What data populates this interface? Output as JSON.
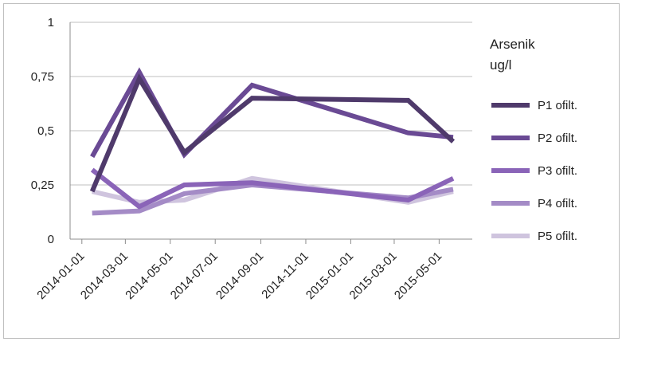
{
  "chart_data": {
    "type": "line",
    "title": "",
    "xlabel": "",
    "ylabel": "",
    "legend_title": [
      "Arsenik",
      "ug/l"
    ],
    "x_tick_labels": [
      "2014-01-01",
      "2014-03-01",
      "2014-05-01",
      "2014-07-01",
      "2014-09-01",
      "2014-11-01",
      "2015-01-01",
      "2015-03-01",
      "2015-05-01"
    ],
    "y_tick_labels": [
      "0",
      "0,25",
      "0,5",
      "0,75",
      "1"
    ],
    "y_ticks": [
      0,
      0.25,
      0.5,
      0.75,
      1
    ],
    "ylim": [
      0,
      1
    ],
    "xlim": [
      "2013-12-16",
      "2015-06-15"
    ],
    "legend_position": "right",
    "grid": "horizontal",
    "series": [
      {
        "name": "P1 ofilt.",
        "color": "#4f3a6b",
        "x": [
          "2014-01-15",
          "2014-03-20",
          "2014-05-20",
          "2014-08-20",
          "2015-03-20",
          "2015-05-20"
        ],
        "values": [
          0.22,
          0.74,
          0.4,
          0.65,
          0.64,
          0.45
        ]
      },
      {
        "name": "P2 ofilt.",
        "color": "#6a4a94",
        "x": [
          "2014-01-15",
          "2014-03-20",
          "2014-05-20",
          "2014-08-20",
          "2015-03-20",
          "2015-05-20"
        ],
        "values": [
          0.38,
          0.77,
          0.39,
          0.71,
          0.49,
          0.47
        ]
      },
      {
        "name": "P3 ofilt.",
        "color": "#8a64b8",
        "x": [
          "2014-01-15",
          "2014-03-20",
          "2014-05-20",
          "2014-08-20",
          "2015-03-20",
          "2015-05-20"
        ],
        "values": [
          0.32,
          0.15,
          0.25,
          0.26,
          0.18,
          0.28
        ]
      },
      {
        "name": "P4 ofilt.",
        "color": "#a48bc6",
        "x": [
          "2014-01-15",
          "2014-03-20",
          "2014-05-20",
          "2014-08-20",
          "2015-03-20",
          "2015-05-20"
        ],
        "values": [
          0.12,
          0.13,
          0.21,
          0.25,
          0.19,
          0.23
        ]
      },
      {
        "name": "P5 ofilt.",
        "color": "#cfc4de",
        "x": [
          "2014-01-15",
          "2014-03-20",
          "2014-05-20",
          "2014-08-20",
          "2015-03-20",
          "2015-05-20"
        ],
        "values": [
          0.22,
          0.17,
          0.18,
          0.28,
          0.17,
          0.22
        ]
      }
    ]
  }
}
